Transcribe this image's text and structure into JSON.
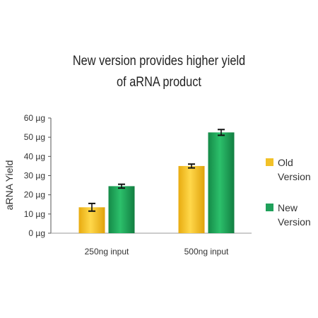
{
  "chart_data": {
    "type": "bar",
    "title": [
      "New version provides higher yield",
      "of aRNA product"
    ],
    "ylabel": "aRNA Yield",
    "y_unit": "µg",
    "ylim": [
      0,
      60
    ],
    "yticks": [
      "0 µg",
      "10 µg",
      "20 µg",
      "30 µg",
      "40 µg",
      "50 µg",
      "60 µg"
    ],
    "categories": [
      "250ng input",
      "500ng input"
    ],
    "series": [
      {
        "name": "Old Version",
        "values": [
          13.5,
          35
        ],
        "errors": [
          2,
          1
        ],
        "color": "#f2c128"
      },
      {
        "name": "New Version",
        "values": [
          24.5,
          52.5
        ],
        "errors": [
          1,
          1.5
        ],
        "color": "#1fa05a"
      }
    ],
    "legend_position": "right",
    "grid": false
  }
}
